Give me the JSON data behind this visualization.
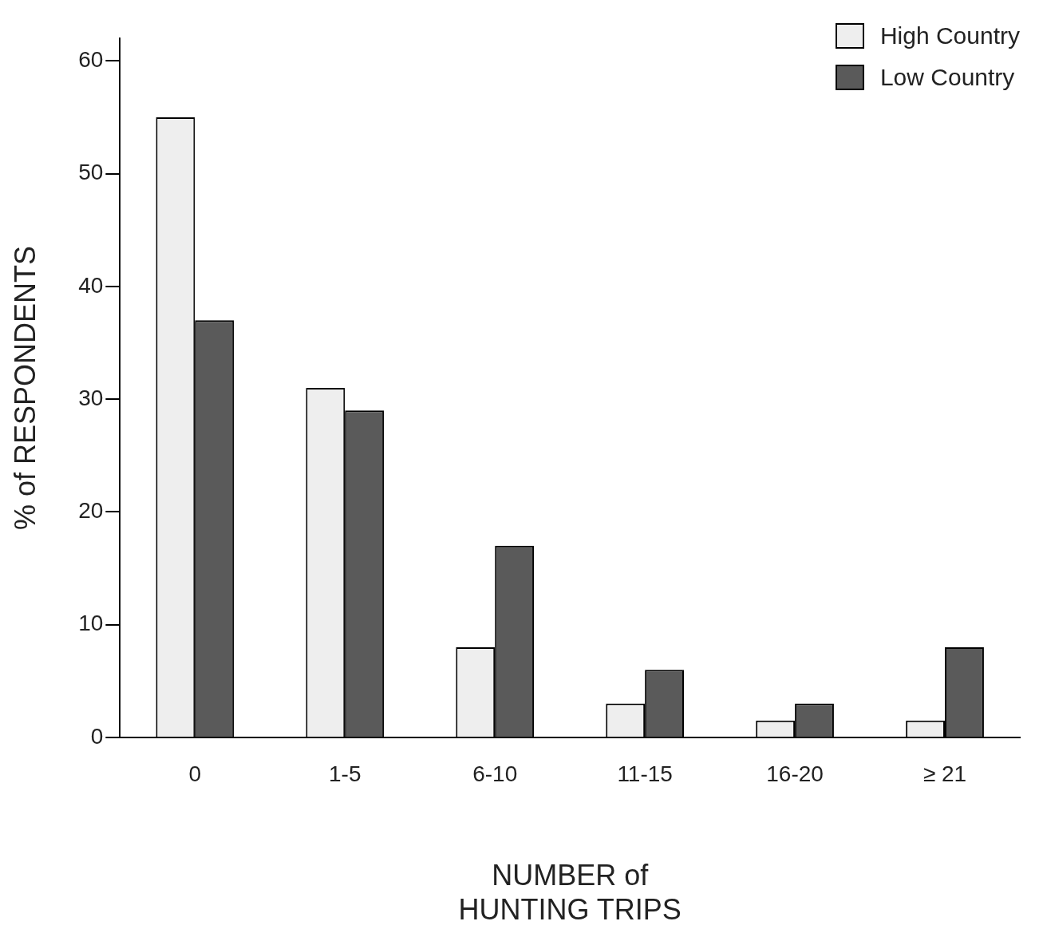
{
  "chart_data": {
    "type": "bar",
    "xlabel": "NUMBER of\nHUNTING TRIPS",
    "ylabel": "% of RESPONDENTS",
    "categories": [
      "0",
      "1-5",
      "6-10",
      "11-15",
      "16-20",
      "≥ 21"
    ],
    "series": [
      {
        "name": "High Country",
        "color": "#eeeeee",
        "values": [
          55,
          31,
          8,
          3,
          1.5,
          1.5
        ]
      },
      {
        "name": "Low Country",
        "color": "#5a5a5a",
        "values": [
          37,
          29,
          17,
          6,
          3,
          8
        ]
      }
    ],
    "ylim": [
      0,
      62
    ],
    "yticks": [
      0,
      10,
      20,
      30,
      40,
      50,
      60
    ],
    "grid": false,
    "legend": "top right"
  }
}
